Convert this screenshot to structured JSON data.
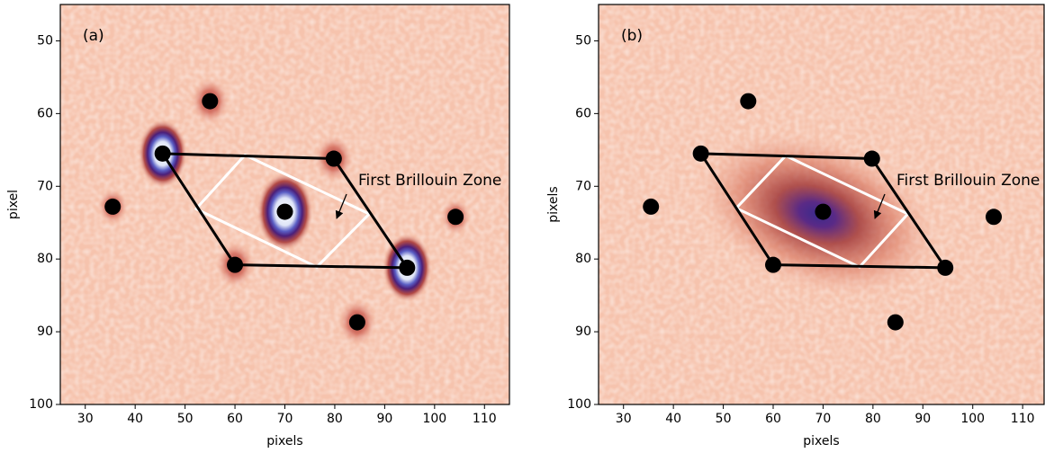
{
  "chart_data": [
    {
      "type": "scatter",
      "label": "(a)",
      "xlabel": "pixels",
      "ylabel": "pixel",
      "annotation": "First Brillouin Zone",
      "xlim": [
        25,
        115
      ],
      "ylim": [
        100,
        45
      ],
      "xticks": [
        30,
        40,
        50,
        60,
        70,
        80,
        90,
        100,
        110
      ],
      "yticks": [
        50,
        60,
        70,
        80,
        90,
        100
      ],
      "points": {
        "color": "#000000",
        "x": [
          55,
          45.5,
          79.8,
          35.5,
          70,
          104.2,
          60,
          94.5,
          84.5
        ],
        "y": [
          58.3,
          65.5,
          66.2,
          72.8,
          73.5,
          74.2,
          80.8,
          81.2,
          88.7
        ]
      },
      "lattice": {
        "color": "#000000",
        "x": [
          45.5,
          79.8,
          94.5,
          60
        ],
        "y": [
          65.5,
          66.2,
          81.2,
          80.8
        ]
      },
      "zone": {
        "color": "#ffffff",
        "x": [
          62.0,
          86.9,
          76.4,
          52.2
        ],
        "y": [
          65.7,
          73.8,
          81.1,
          73.1
        ]
      }
    },
    {
      "type": "scatter",
      "label": "(b)",
      "xlabel": "pixels",
      "ylabel": "pixels",
      "annotation": "First Brillouin Zone",
      "xlim": [
        25,
        114.3
      ],
      "ylim": [
        100,
        45
      ],
      "xticks": [
        30,
        40,
        50,
        60,
        70,
        80,
        90,
        100,
        110
      ],
      "yticks": [
        50,
        60,
        70,
        80,
        90,
        100
      ],
      "points": {
        "color": "#000000",
        "x": [
          55,
          45.5,
          79.8,
          35.5,
          70,
          104.2,
          60,
          94.5,
          84.5
        ],
        "y": [
          58.3,
          65.5,
          66.2,
          72.8,
          73.5,
          74.2,
          80.8,
          81.2,
          88.7
        ]
      },
      "lattice": {
        "color": "#000000",
        "x": [
          45.5,
          79.8,
          94.5,
          60
        ],
        "y": [
          65.5,
          66.2,
          81.2,
          80.8
        ]
      },
      "zone": {
        "color": "#ffffff",
        "x": [
          62.5,
          87.0,
          77.3,
          52.6
        ],
        "y": [
          65.8,
          73.8,
          81.1,
          73.0
        ]
      }
    }
  ]
}
